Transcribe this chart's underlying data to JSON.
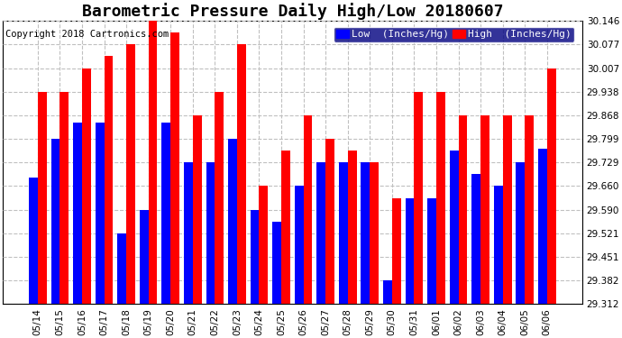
{
  "title": "Barometric Pressure Daily High/Low 20180607",
  "copyright": "Copyright 2018 Cartronics.com",
  "legend_low": "Low  (Inches/Hg)",
  "legend_high": "High  (Inches/Hg)",
  "dates": [
    "05/14",
    "05/15",
    "05/16",
    "05/17",
    "05/18",
    "05/19",
    "05/20",
    "05/21",
    "05/22",
    "05/23",
    "05/24",
    "05/25",
    "05/26",
    "05/27",
    "05/28",
    "05/29",
    "05/30",
    "05/31",
    "06/01",
    "06/02",
    "06/03",
    "06/04",
    "06/05",
    "06/06"
  ],
  "low_values": [
    29.685,
    29.799,
    29.848,
    29.848,
    29.521,
    29.59,
    29.848,
    29.729,
    29.729,
    29.799,
    29.59,
    29.556,
    29.66,
    29.729,
    29.729,
    29.729,
    29.382,
    29.625,
    29.625,
    29.764,
    29.695,
    29.66,
    29.729,
    29.771
  ],
  "high_values": [
    29.938,
    29.938,
    30.007,
    30.042,
    30.077,
    30.146,
    30.112,
    29.868,
    29.938,
    30.077,
    29.66,
    29.764,
    29.868,
    29.799,
    29.764,
    29.729,
    29.625,
    29.938,
    29.938,
    29.868,
    29.868,
    29.868,
    29.868,
    30.007
  ],
  "ymin": 29.312,
  "ymax": 30.146,
  "yticks": [
    29.312,
    29.382,
    29.451,
    29.521,
    29.59,
    29.66,
    29.729,
    29.799,
    29.868,
    29.938,
    30.007,
    30.077,
    30.146
  ],
  "low_color": "#0000ff",
  "high_color": "#ff0000",
  "bg_color": "#ffffff",
  "grid_color": "#c0c0c0",
  "bar_width": 0.4,
  "title_fontsize": 13,
  "copyright_fontsize": 7.5,
  "tick_fontsize": 7.5,
  "legend_fontsize": 8
}
